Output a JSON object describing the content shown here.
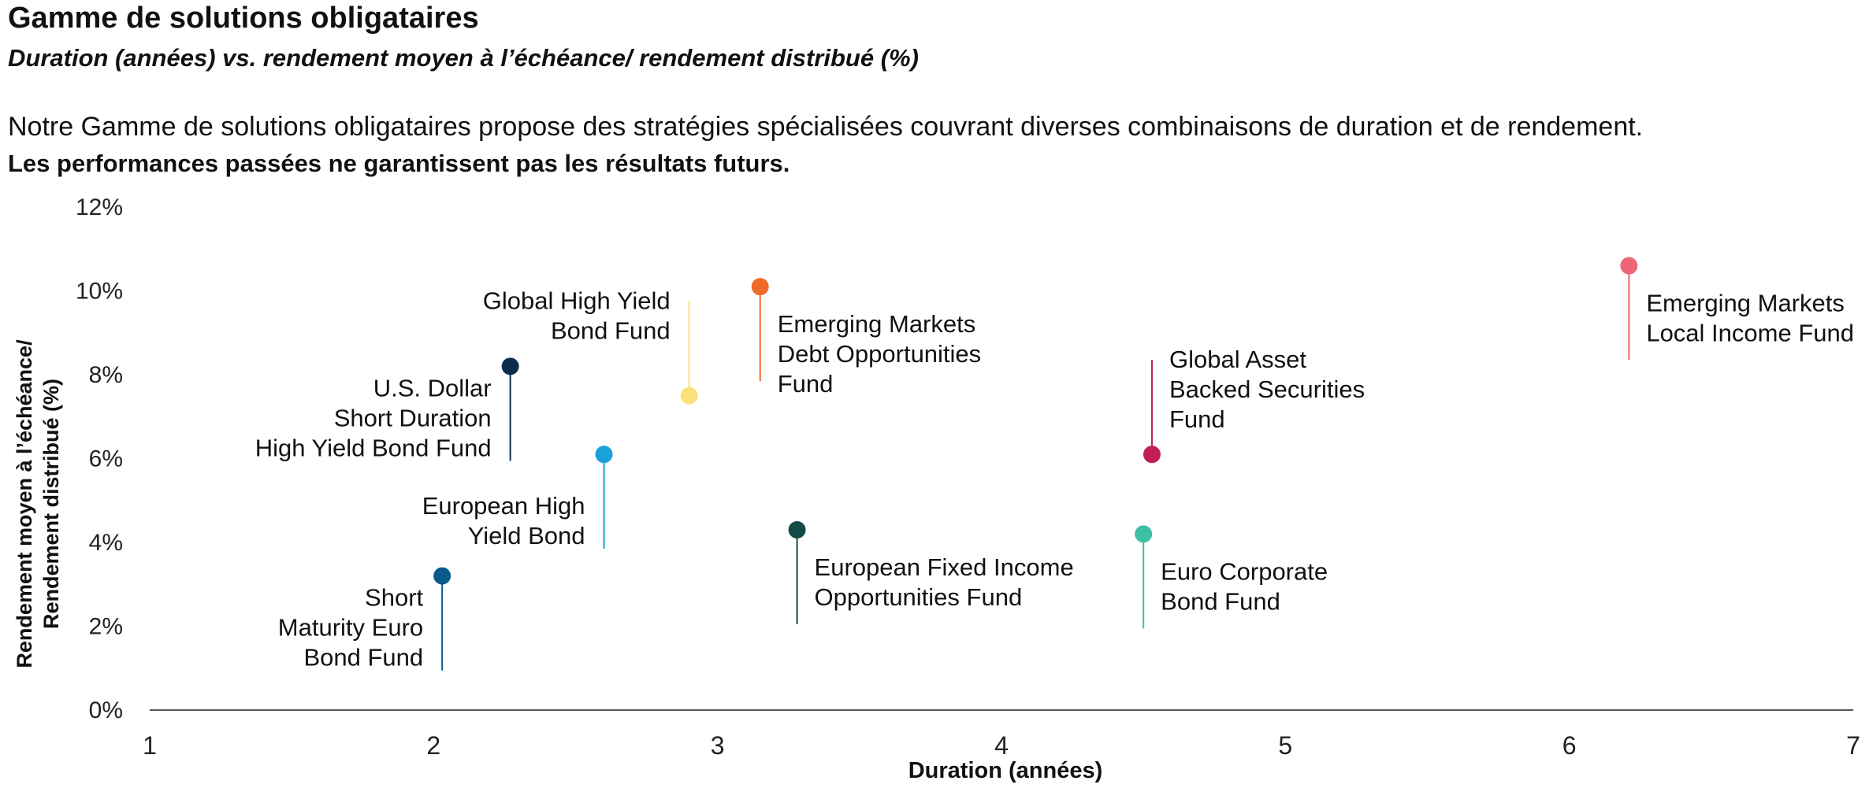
{
  "header": {
    "title": "Gamme de solutions obligataires",
    "subtitle": "Duration (années) vs. rendement moyen à l’échéance/ rendement distribué (%)",
    "description": "Notre Gamme de solutions obligataires propose des stratégies spécialisées couvrant diverses combinaisons de duration et de rendement.",
    "disclaimer": "Les performances passées ne garantissent pas les résultats futurs."
  },
  "chart_data": {
    "type": "scatter",
    "xlabel": "Duration (années)",
    "ylabel": [
      "Rendement moyen à l’échéance/",
      "Rendement distribué (%)"
    ],
    "xlim": [
      1,
      7
    ],
    "ylim": [
      0,
      12
    ],
    "xticks": [
      "1",
      "2",
      "3",
      "4",
      "5",
      "6",
      "7"
    ],
    "yticks": [
      "0%",
      "2%",
      "4%",
      "6%",
      "8%",
      "10%",
      "12%"
    ],
    "grid": false,
    "points": [
      {
        "name": [
          "Short",
          "Maturity Euro",
          "Bond Fund"
        ],
        "x": 2.03,
        "y": 3.2,
        "color": "#0a5a8e",
        "label_side": "left",
        "stem": "down"
      },
      {
        "name": [
          "U.S. Dollar",
          "Short Duration",
          "High Yield Bond Fund"
        ],
        "x": 2.27,
        "y": 8.2,
        "color": "#0c2d4f",
        "label_side": "left",
        "stem": "down"
      },
      {
        "name": [
          "European High",
          "Yield Bond"
        ],
        "x": 2.6,
        "y": 6.1,
        "color": "#1aa0db",
        "label_side": "left",
        "stem": "down"
      },
      {
        "name": [
          "Global High Yield",
          "Bond Fund"
        ],
        "x": 2.9,
        "y": 7.5,
        "color": "#fde07a",
        "label_side": "left",
        "stem": "up"
      },
      {
        "name": [
          "Emerging Markets",
          "Debt Opportunities",
          "Fund"
        ],
        "x": 3.15,
        "y": 10.1,
        "color": "#f06a2a",
        "label_side": "right",
        "stem": "down"
      },
      {
        "name": [
          "European Fixed Income",
          "Opportunities Fund"
        ],
        "x": 3.28,
        "y": 4.3,
        "color": "#124a45",
        "label_side": "right",
        "stem": "down"
      },
      {
        "name": [
          "Euro Corporate",
          "Bond Fund"
        ],
        "x": 4.5,
        "y": 4.2,
        "color": "#3fbfa3",
        "label_side": "right",
        "stem": "down"
      },
      {
        "name": [
          "Global Asset",
          "Backed Securities",
          "Fund"
        ],
        "x": 4.53,
        "y": 6.1,
        "color": "#c01f55",
        "label_side": "right",
        "stem": "up"
      },
      {
        "name": [
          "Emerging Markets",
          "Local Income Fund"
        ],
        "x": 6.21,
        "y": 10.6,
        "color": "#f06478",
        "label_side": "right",
        "stem": "down"
      }
    ]
  }
}
